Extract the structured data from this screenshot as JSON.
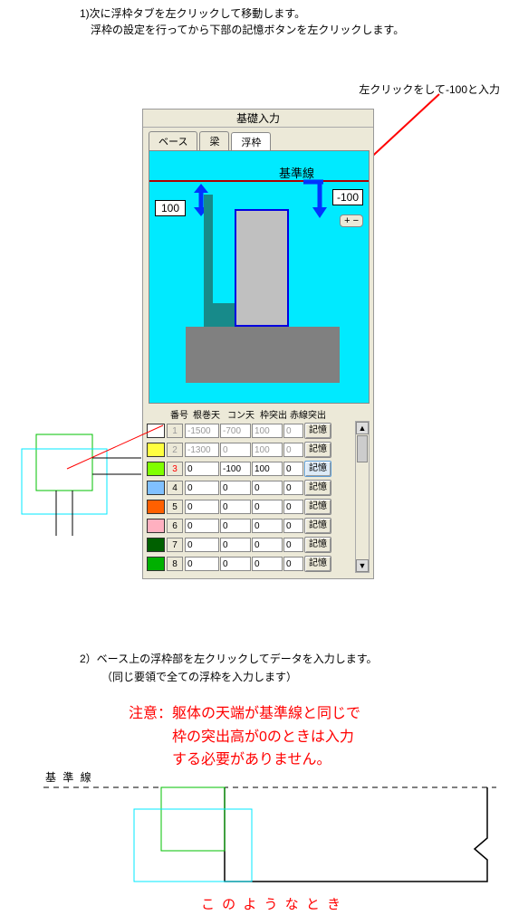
{
  "instruction1_line1": "1)次に浮枠タブを左クリックして移動します。",
  "instruction1_line2": "浮枠の設定を行ってから下部の記憶ボタンを左クリックします。",
  "annotation_right": "左クリックをして-100と入力",
  "panel_title": "基礎入力",
  "tabs": {
    "t0": "ベース",
    "t1": "梁",
    "t2": "浮枠"
  },
  "canvas": {
    "ref_label": "基準線",
    "val_left": "100",
    "val_right": "-100",
    "plusminus": "+ −"
  },
  "table": {
    "headers": {
      "h1": "番号",
      "h2": "根巻天",
      "h3": "コン天",
      "h4": "枠突出",
      "h5": "赤線突出"
    },
    "rows": [
      {
        "idx": "1",
        "col": "#ffffff",
        "a": "-1500",
        "b": "-700",
        "c": "100",
        "d": "0",
        "active": false,
        "faded": true
      },
      {
        "idx": "2",
        "col": "#ffff40",
        "a": "-1300",
        "b": "0",
        "c": "100",
        "d": "0",
        "active": false,
        "faded": true
      },
      {
        "idx": "3",
        "col": "#80ff00",
        "a": "0",
        "b": "-100",
        "c": "100",
        "d": "0",
        "active": true,
        "faded": false,
        "red": true
      },
      {
        "idx": "4",
        "col": "#80c0ff",
        "a": "0",
        "b": "0",
        "c": "0",
        "d": "0",
        "active": false,
        "faded": false
      },
      {
        "idx": "5",
        "col": "#ff6000",
        "a": "0",
        "b": "0",
        "c": "0",
        "d": "0",
        "active": false,
        "faded": false
      },
      {
        "idx": "6",
        "col": "#ffb0c0",
        "a": "0",
        "b": "0",
        "c": "0",
        "d": "0",
        "active": false,
        "faded": false
      },
      {
        "idx": "7",
        "col": "#006000",
        "a": "0",
        "b": "0",
        "c": "0",
        "d": "0",
        "active": false,
        "faded": false
      },
      {
        "idx": "8",
        "col": "#00b000",
        "a": "0",
        "b": "0",
        "c": "0",
        "d": "0",
        "active": false,
        "faded": false
      }
    ],
    "mem_label": "記憶"
  },
  "instruction2_line1": "2）ベース上の浮枠部を左クリックしてデータを入力します。",
  "instruction2_line2": "（同じ要領で全ての浮枠を入力します）",
  "caution_line1": "注意：躯体の天端が基準線と同じで",
  "caution_line2": "枠の突出高が0のときは入力",
  "caution_line3": "する必要がありません。",
  "kijun_label": "基 準 線",
  "bottom_caption": "こ の よ う な と き"
}
